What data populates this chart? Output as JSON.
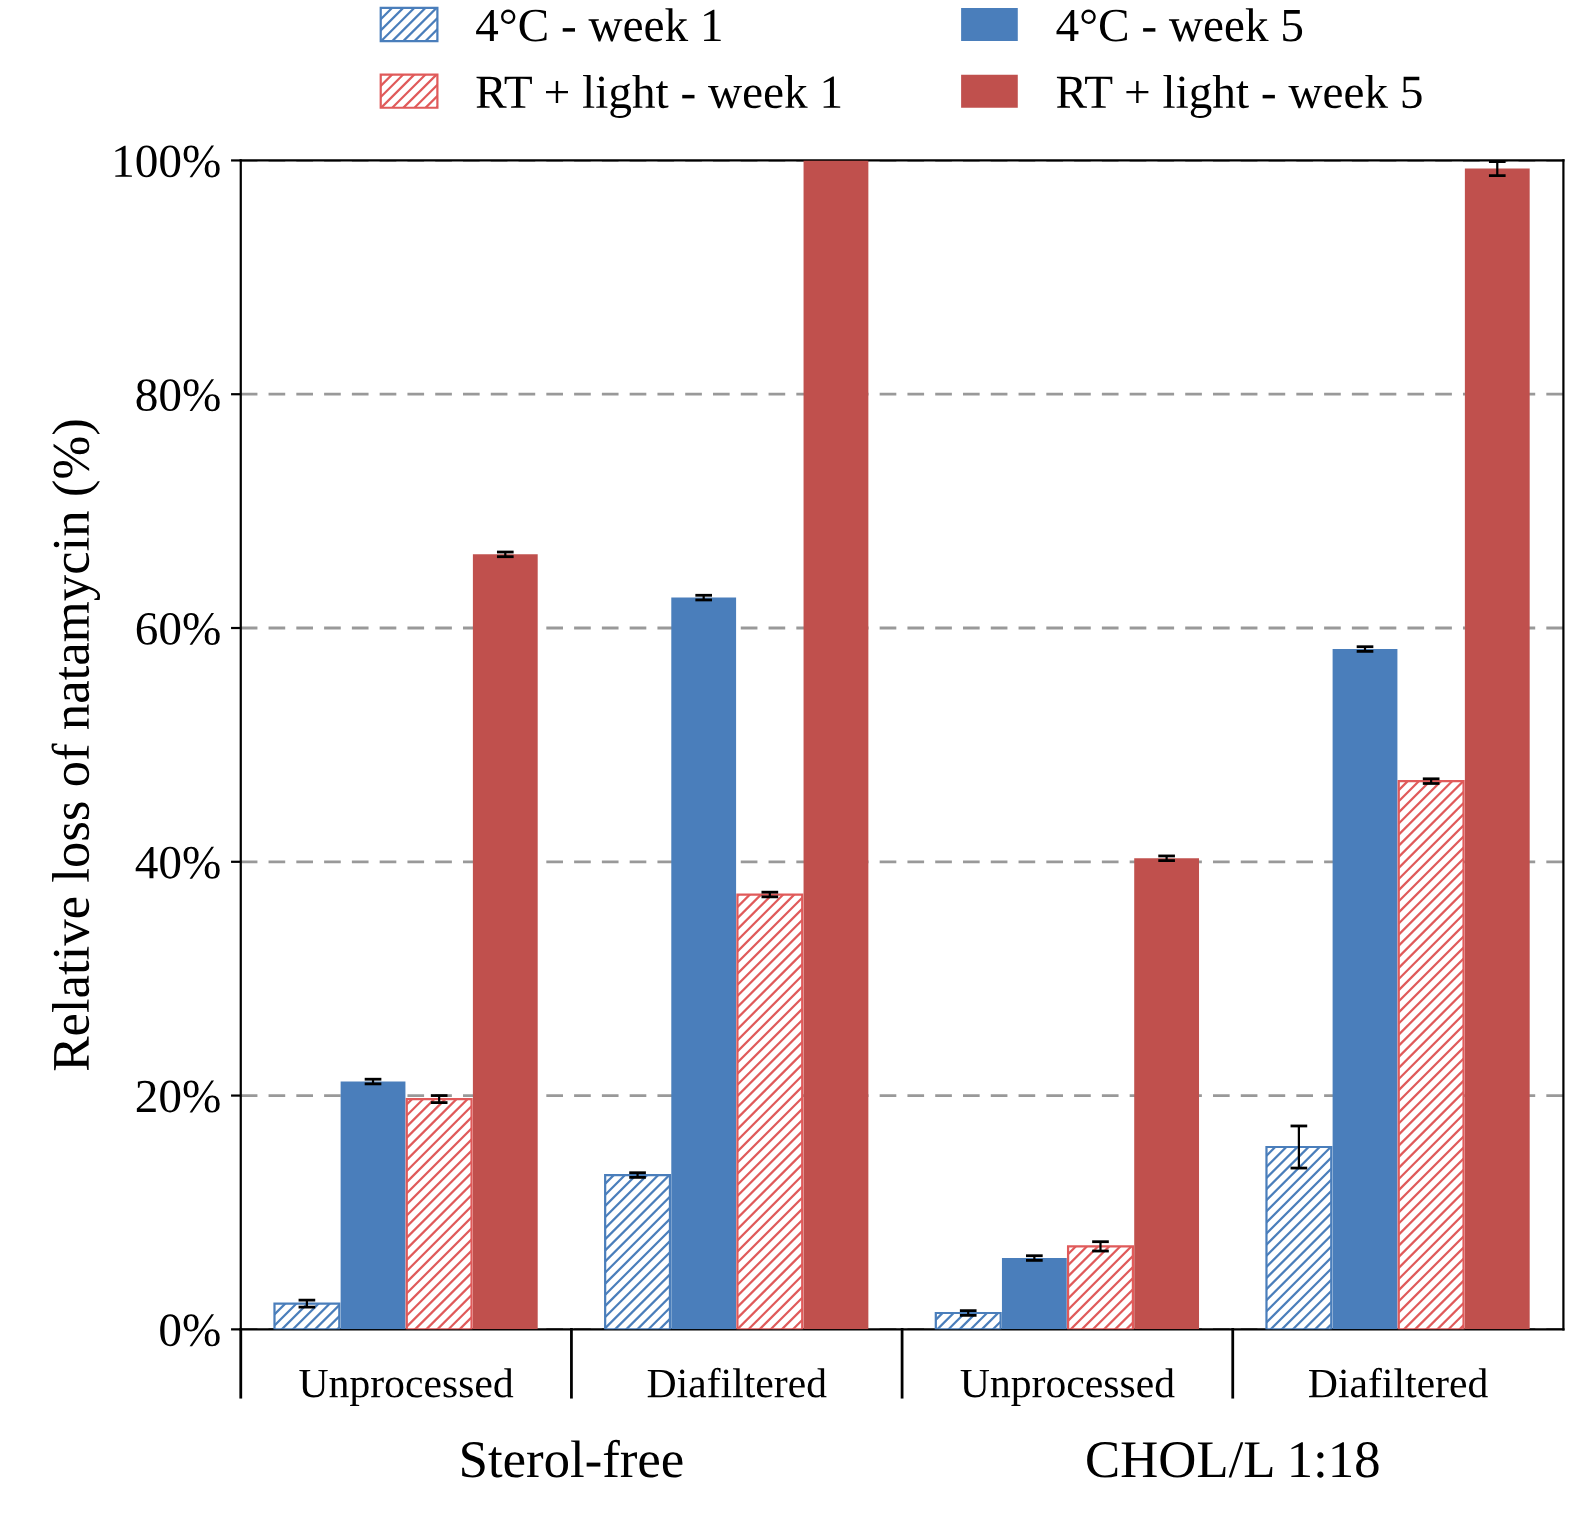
{
  "chart_data": {
    "type": "bar",
    "ylabel": "Relative loss of natamycin (%)",
    "categories": [
      "Unprocessed",
      "Diafiltered",
      "Unprocessed",
      "Diafiltered"
    ],
    "annotations": [
      "Sterol-free",
      "CHOL/L 1:18"
    ],
    "series": [
      {
        "name": "4°C - week 1",
        "color": "#4a7ebb",
        "values": [
          2.2,
          13.2,
          1.4,
          15.6
        ],
        "errors": [
          0.3,
          0.2,
          0.2,
          1.8
        ]
      },
      {
        "name": "RT + light - week 1",
        "color": "#e05a5a",
        "values": [
          19.7,
          37.2,
          7.1,
          46.9
        ],
        "errors": [
          0.3,
          0.2,
          0.4,
          0.2
        ]
      },
      {
        "name": "4°C - week 5",
        "color": "#4a7ebb",
        "values": [
          21.2,
          62.6,
          6.1,
          58.2
        ],
        "errors": [
          0.2,
          0.2,
          0.2,
          0.2
        ]
      },
      {
        "name": "RT + light - week 5",
        "color": "#c0504d",
        "values": [
          66.3,
          100,
          40.3,
          99.3
        ],
        "errors": [
          0.2,
          null,
          0.2,
          0.6
        ]
      }
    ],
    "ylim": [
      0,
      100
    ],
    "yticks": [
      {
        "value": 0,
        "label": "0%"
      },
      {
        "value": 20,
        "label": "20%"
      },
      {
        "value": 40,
        "label": "40%"
      },
      {
        "value": 60,
        "label": "60%"
      },
      {
        "value": 80,
        "label": "80%"
      },
      {
        "value": 100,
        "label": "100%"
      }
    ],
    "grid": "y",
    "legend": "top"
  }
}
